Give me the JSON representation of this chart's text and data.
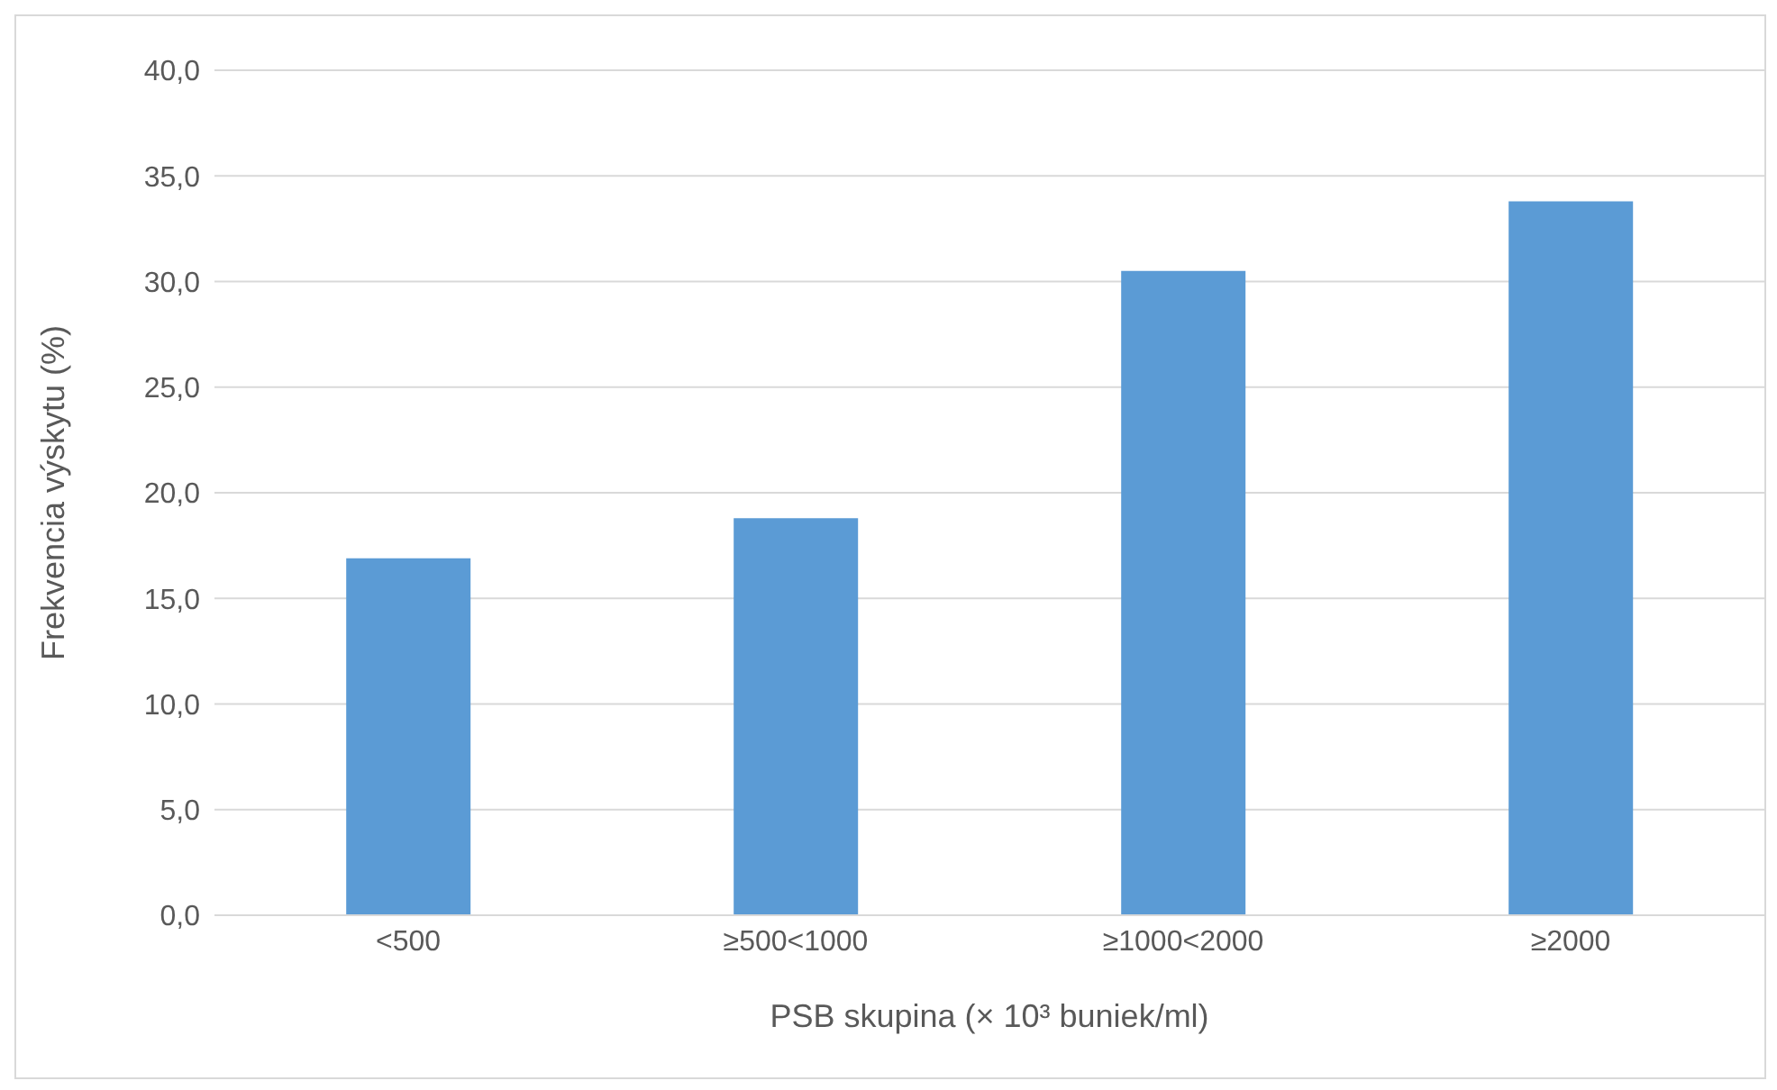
{
  "chart_data": {
    "type": "bar",
    "xlabel": "PSB skupina (× 10³ buniek/ml)",
    "ylabel": "Frekvencia výskytu (%)",
    "categories": [
      "<500",
      "≥500<1000",
      "≥1000<2000",
      "≥2000"
    ],
    "values": [
      16.9,
      18.8,
      30.5,
      33.8
    ],
    "color": "#5b9bd5",
    "ylim": [
      0,
      40
    ],
    "yticks": [
      {
        "value": 0,
        "label": "0,0"
      },
      {
        "value": 5,
        "label": "5,0"
      },
      {
        "value": 10,
        "label": "10,0"
      },
      {
        "value": 15,
        "label": "15,0"
      },
      {
        "value": 20,
        "label": "20,0"
      },
      {
        "value": 25,
        "label": "25,0"
      },
      {
        "value": 30,
        "label": "30,0"
      },
      {
        "value": 35,
        "label": "35,0"
      },
      {
        "value": 40,
        "label": "40,0"
      }
    ],
    "grid": "y"
  }
}
